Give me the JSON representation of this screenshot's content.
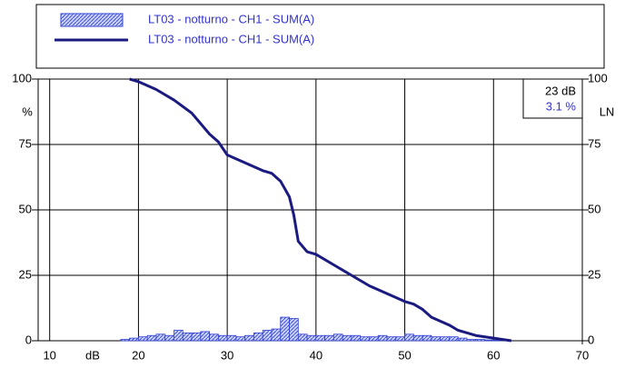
{
  "chart_data": {
    "type": "histogram_line",
    "x_label": "dB",
    "y_label": "%",
    "y2_label": "LN",
    "annotations": [
      "23 dB",
      "3.1 %"
    ],
    "xlim": [
      8.7,
      70
    ],
    "xticks": [
      10,
      20,
      30,
      40,
      50,
      60,
      70
    ],
    "ylim": [
      0,
      100
    ],
    "yticks": [
      0,
      25,
      50,
      75,
      100
    ],
    "y2lim": [
      0,
      100
    ],
    "y2ticks": [
      0,
      25,
      50,
      75,
      100
    ],
    "grid": true,
    "series": [
      {
        "name": "LT03 - notturno - CH1 - SUM(A)",
        "type": "histogram",
        "color": "#7f8fff",
        "bins": [
          18,
          19,
          20,
          21,
          22,
          23,
          24,
          25,
          26,
          27,
          28,
          29,
          30,
          31,
          32,
          33,
          34,
          35,
          36,
          37,
          38,
          39,
          40,
          41,
          42,
          43,
          44,
          45,
          46,
          47,
          48,
          49,
          50,
          51,
          52,
          53,
          54,
          55,
          56,
          57,
          58,
          59,
          60,
          61
        ],
        "values": [
          0.5,
          1,
          1.5,
          2,
          2.5,
          2,
          4,
          3,
          3,
          3.5,
          2.5,
          2,
          2,
          1.5,
          2,
          3,
          4,
          4.5,
          9,
          8.5,
          2.5,
          2,
          2,
          2,
          2.5,
          2,
          2,
          1.5,
          1.5,
          2,
          1.5,
          1.5,
          2.5,
          2,
          2,
          1.5,
          1.5,
          1.5,
          1,
          0.5,
          0.5,
          0.3,
          0.2
        ]
      },
      {
        "name": "LT03 - notturno - CH1 - SUM(A)",
        "type": "line",
        "color": "#1a1a80",
        "x": [
          19,
          20,
          22,
          24,
          26,
          28,
          29,
          30,
          32,
          34,
          35,
          36,
          37,
          37.5,
          38,
          39,
          40,
          42,
          44,
          46,
          48,
          50,
          51,
          52,
          53,
          55,
          56,
          58,
          60,
          62
        ],
        "values": [
          100,
          99,
          96,
          92,
          87,
          79,
          76,
          71,
          68,
          65,
          64,
          61,
          55,
          48,
          38,
          34,
          33,
          29,
          25,
          21,
          18,
          15,
          14,
          12,
          9,
          6,
          4,
          2,
          1,
          0
        ]
      }
    ]
  }
}
